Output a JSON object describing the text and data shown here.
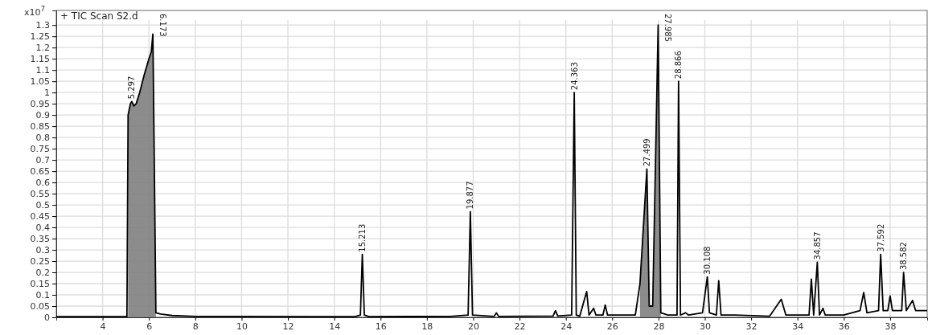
{
  "chart_data": {
    "type": "line",
    "title": "+ TIC Scan S2.d",
    "ylabel": "x10$^{7}$",
    "xlim": [
      2,
      39.6
    ],
    "ylim": [
      0,
      1.365
    ],
    "xticks": [
      4,
      6,
      8,
      10,
      12,
      14,
      16,
      18,
      20,
      22,
      24,
      26,
      28,
      30,
      32,
      34,
      36,
      38
    ],
    "yticks": [
      0,
      0.05,
      0.1,
      0.15,
      0.2,
      0.25,
      0.3,
      0.35,
      0.4,
      0.45,
      0.5,
      0.55,
      0.6,
      0.65,
      0.7,
      0.75,
      0.8,
      0.85,
      0.9,
      0.95,
      1,
      1.05,
      1.1,
      1.15,
      1.2,
      1.25,
      1.3
    ],
    "grid": true,
    "marker": "none",
    "line_style": "solid",
    "series": [
      {
        "type": "area",
        "color": "#808080",
        "x": [
          5.1,
          5.2,
          5.26,
          5.35,
          5.45,
          5.6,
          5.8,
          6.0,
          6.1,
          6.17,
          6.22,
          6.3,
          6.31,
          27.2,
          27.499,
          27.6,
          27.75,
          27.985,
          28.1
        ],
        "values": [
          0.9,
          0.95,
          0.96,
          0.94,
          0.95,
          1.0,
          1.08,
          1.15,
          1.18,
          1.26,
          0.8,
          0.02,
          null,
          0.15,
          0.66,
          0.05,
          0.05,
          1.3,
          0.02
        ]
      },
      {
        "color": "#000000",
        "x": [
          2.0,
          4.8,
          5.05,
          5.1,
          5.2,
          5.26,
          5.35,
          5.45,
          5.6,
          5.8,
          6.0,
          6.1,
          6.17,
          6.22,
          6.3,
          6.5,
          7.0,
          8.0,
          10.0,
          13.0,
          14.9,
          15.13,
          15.213,
          15.3,
          15.5,
          19.0,
          19.78,
          19.877,
          19.97,
          20.9,
          21.0,
          21.1,
          23.45,
          23.55,
          23.65,
          24.25,
          24.363,
          24.45,
          24.6,
          24.9,
          25.0,
          25.2,
          25.3,
          25.6,
          25.7,
          25.8,
          27.0,
          27.2,
          27.499,
          27.6,
          27.75,
          27.985,
          28.1,
          28.4,
          28.8,
          28.866,
          28.95,
          29.17,
          29.3,
          29.9,
          30.108,
          30.2,
          30.5,
          30.6,
          30.7,
          31.3,
          32.8,
          33.3,
          33.5,
          34.5,
          34.6,
          34.7,
          34.857,
          34.95,
          35.1,
          35.2,
          36.0,
          36.7,
          36.86,
          37.0,
          37.5,
          37.592,
          37.7,
          37.9,
          38.0,
          38.1,
          38.5,
          38.582,
          38.7,
          38.97,
          39.1,
          39.6
        ],
        "values": [
          0.003,
          0.003,
          0.003,
          0.9,
          0.95,
          0.96,
          0.94,
          0.95,
          1.0,
          1.08,
          1.15,
          1.18,
          1.26,
          0.8,
          0.02,
          0.015,
          0.008,
          0.004,
          0.004,
          0.003,
          0.003,
          0.01,
          0.28,
          0.01,
          0.003,
          0.004,
          0.01,
          0.47,
          0.01,
          0.004,
          0.02,
          0.004,
          0.006,
          0.03,
          0.006,
          0.01,
          1.0,
          0.01,
          0.005,
          0.115,
          0.01,
          0.04,
          0.01,
          0.01,
          0.055,
          0.01,
          0.01,
          0.15,
          0.66,
          0.05,
          0.05,
          1.3,
          0.02,
          0.01,
          0.01,
          1.05,
          0.01,
          0.02,
          0.01,
          0.02,
          0.18,
          0.02,
          0.01,
          0.163,
          0.01,
          0.01,
          0.005,
          0.08,
          0.01,
          0.01,
          0.17,
          0.01,
          0.245,
          0.01,
          0.04,
          0.01,
          0.01,
          0.03,
          0.11,
          0.02,
          0.03,
          0.28,
          0.03,
          0.03,
          0.095,
          0.03,
          0.03,
          0.2,
          0.03,
          0.075,
          0.03,
          0.03
        ]
      }
    ],
    "annotations": [
      {
        "text": "5.297",
        "x": 5.26,
        "y": 0.96
      },
      {
        "text": "6.173",
        "x": 6.17,
        "y": 1.26
      },
      {
        "text": "15.213",
        "x": 15.213,
        "y": 0.28
      },
      {
        "text": "19.877",
        "x": 19.877,
        "y": 0.47
      },
      {
        "text": "24.363",
        "x": 24.363,
        "y": 1.0
      },
      {
        "text": "27.499",
        "x": 27.499,
        "y": 0.66
      },
      {
        "text": "27.985",
        "x": 27.985,
        "y": 1.3
      },
      {
        "text": "28.866",
        "x": 28.866,
        "y": 1.05
      },
      {
        "text": "30.108",
        "x": 30.108,
        "y": 0.18
      },
      {
        "text": "34.857",
        "x": 34.857,
        "y": 0.245
      },
      {
        "text": "37.592",
        "x": 37.592,
        "y": 0.28
      },
      {
        "text": "38.582",
        "x": 38.582,
        "y": 0.2
      }
    ]
  }
}
